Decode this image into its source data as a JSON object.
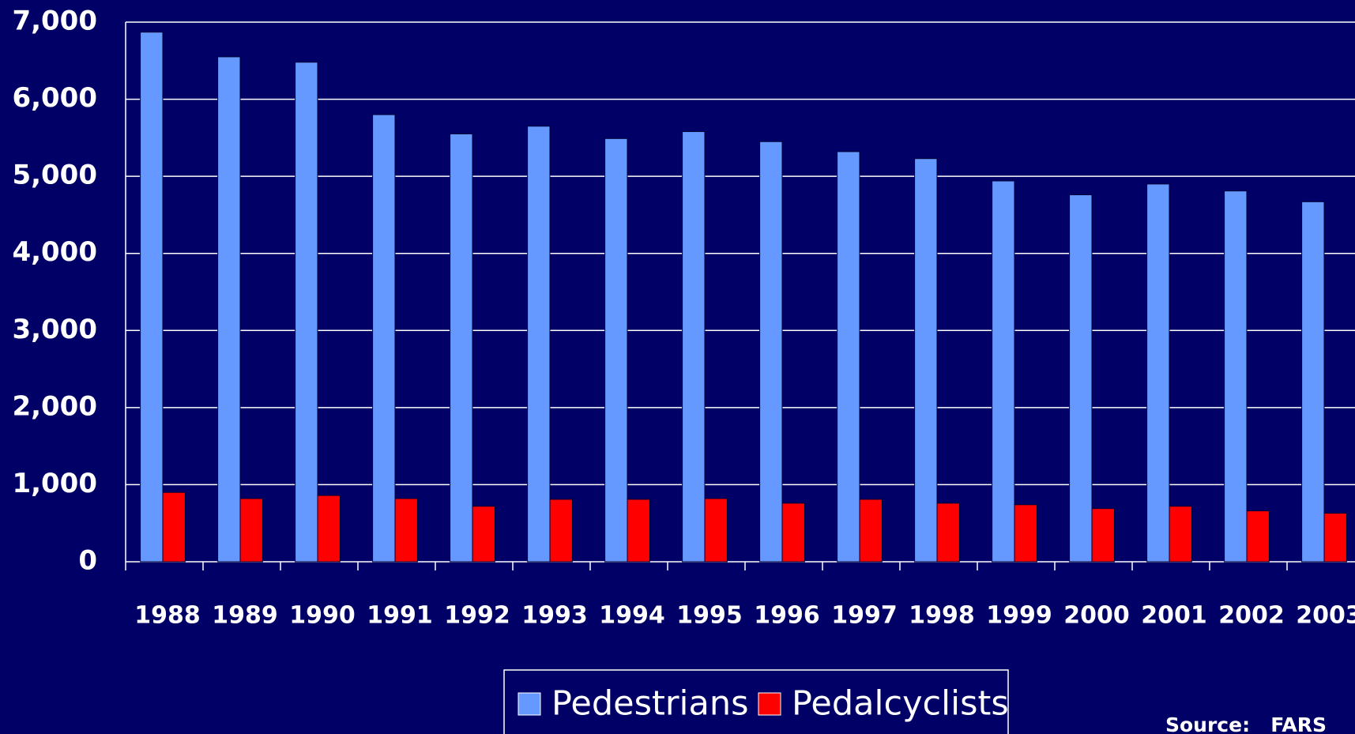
{
  "chart_data": {
    "type": "bar",
    "categories": [
      "1988",
      "1989",
      "1990",
      "1991",
      "1992",
      "1993",
      "1994",
      "1995",
      "1996",
      "1997",
      "1998",
      "1999",
      "2000",
      "2001",
      "2002",
      "2003"
    ],
    "series": [
      {
        "name": "Pedestrians",
        "color": "#6699ff",
        "values": [
          6870,
          6550,
          6480,
          5800,
          5550,
          5650,
          5490,
          5580,
          5450,
          5320,
          5230,
          4940,
          4760,
          4900,
          4810,
          4670
        ]
      },
      {
        "name": "Pedalcyclists",
        "color": "#ff0000",
        "values": [
          900,
          820,
          860,
          820,
          720,
          810,
          810,
          820,
          760,
          810,
          760,
          740,
          690,
          720,
          660,
          630
        ]
      }
    ],
    "ylim": [
      0,
      7000
    ],
    "yticks": [
      0,
      {
        "value": 1000,
        "label": "1,000"
      },
      {
        "value": 2000,
        "label": "2,000"
      },
      {
        "value": 3000,
        "label": "3,000"
      },
      {
        "value": 4000,
        "label": "4,000"
      },
      {
        "value": 5000,
        "label": "5,000"
      },
      {
        "value": 6000,
        "label": "6,000"
      },
      {
        "value": 7000,
        "label": "7,000"
      }
    ],
    "grid": true,
    "legend": "bottom",
    "source": "Source:   FARS"
  }
}
